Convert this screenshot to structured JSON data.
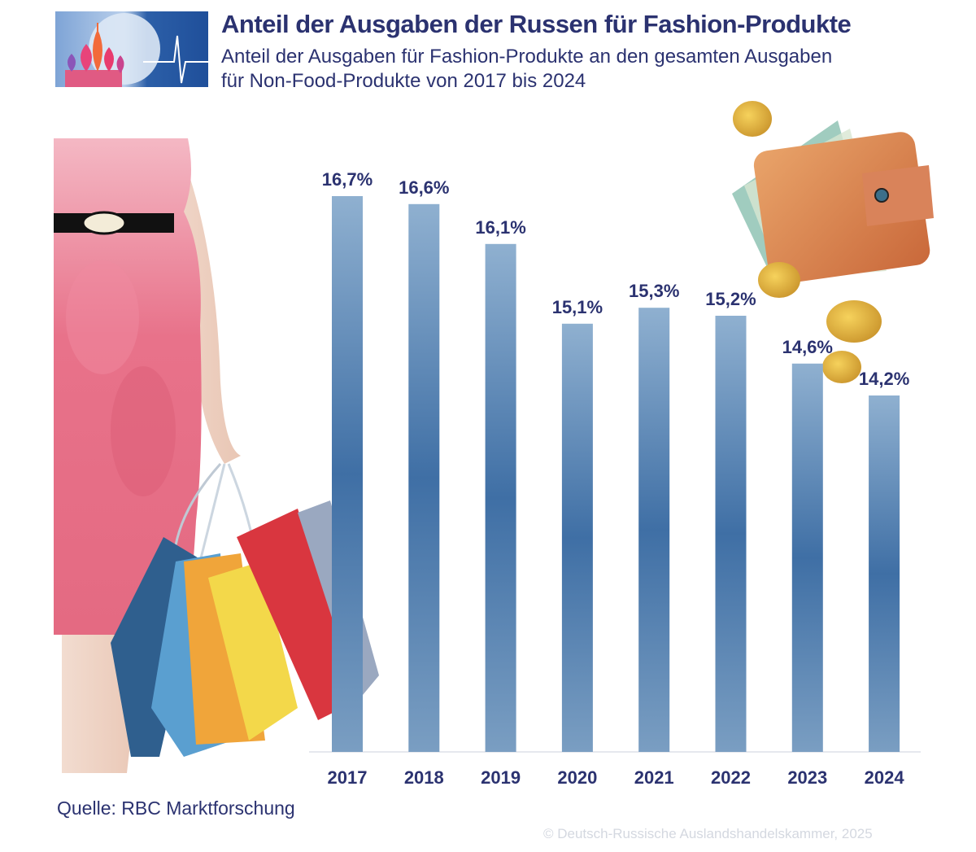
{
  "header": {
    "title": "Anteil der Ausgaben der Russen für Fashion-Produkte",
    "subtitle_line1": "Anteil der Ausgaben für Fashion-Produkte an den gesamten Ausgaben",
    "subtitle_line2": "für Non-Food-Produkte von 2017 bis 2024"
  },
  "footer": {
    "source": "Quelle: RBC Marktforschung",
    "copyright": "© Deutsch-Russische Auslandshandelskammer, 2025"
  },
  "colors": {
    "title": "#2b3270",
    "bar_top": "#8fb0d0",
    "bar_mid": "#3f6fa5",
    "bar_bottom": "#7a9ec2"
  },
  "chart_data": {
    "type": "bar",
    "title": "Anteil der Ausgaben der Russen für Fashion-Produkte",
    "xlabel": "",
    "ylabel": "",
    "categories": [
      "2017",
      "2018",
      "2019",
      "2020",
      "2021",
      "2022",
      "2023",
      "2024"
    ],
    "values": [
      16.7,
      16.6,
      16.1,
      15.1,
      15.3,
      15.2,
      14.6,
      14.2
    ],
    "value_labels": [
      "16,7%",
      "16,6%",
      "16,1%",
      "15,1%",
      "15,3%",
      "15,2%",
      "14,6%",
      "14,2%"
    ],
    "unit": "%",
    "grid": false,
    "legend": "none"
  }
}
